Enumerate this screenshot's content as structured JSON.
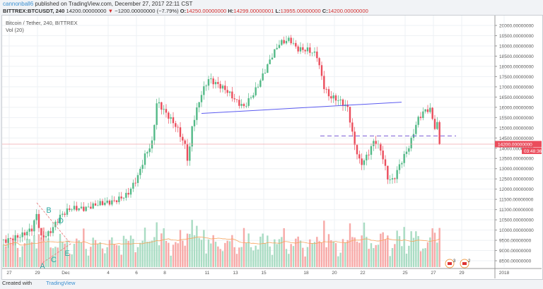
{
  "header": {
    "author": "cannonball6",
    "published": "published on TradingView.com, December 27, 2017 22:11 CST",
    "symbol": "BITTREX:BTCUSDT, 240",
    "last": "14200.00000000",
    "change": "−1200.00000000 (−7.79%)",
    "o_label": "O:",
    "o": "14250.00000000",
    "h_label": "H:",
    "h": "14299.00000001",
    "l_label": "L:",
    "l": "13955.00000000",
    "c_label": "C:",
    "c": "14200.00000000"
  },
  "legend": {
    "title": "Bitcoin / Tether, 240, BITTREX",
    "vol": "Vol (20)"
  },
  "footer": {
    "created": "Created with",
    "brand": "TradingView"
  },
  "colors": {
    "up": "#53b987",
    "down": "#eb4d5c",
    "up_vol": "#a9dcc3",
    "down_vol": "#f7a9a7",
    "trend": "#5b5bf0",
    "dashed": "#7a5cd6",
    "ma": "#f7a35c",
    "annot": "#2aa7a0"
  },
  "chart_data": {
    "type": "candlestick",
    "title": "Bitcoin / Tether, 240, BITTREX",
    "ylim": [
      8250,
      20250
    ],
    "y_ticks": [
      "20000.00000000",
      "19500.00000000",
      "19000.00000000",
      "18500.00000000",
      "18000.00000000",
      "17500.00000000",
      "17000.00000000",
      "16500.00000000",
      "16000.00000000",
      "15500.00000000",
      "15000.00000000",
      "14500.00000000",
      "14000.00000000",
      "13500.00000000",
      "13000.00000000",
      "12500.00000000",
      "12000.00000000",
      "11500.00000000",
      "11000.00000000",
      "10500.00000000",
      "10000.00000000",
      "9500.00000000",
      "9000.00000000",
      "8500.00000000"
    ],
    "x_ticks": [
      {
        "label": "27",
        "day": 0
      },
      {
        "label": "29",
        "day": 2
      },
      {
        "label": "Dec",
        "day": 4
      },
      {
        "label": "4",
        "day": 7
      },
      {
        "label": "6",
        "day": 9
      },
      {
        "label": "8",
        "day": 11
      },
      {
        "label": "11",
        "day": 14
      },
      {
        "label": "13",
        "day": 16
      },
      {
        "label": "15",
        "day": 18
      },
      {
        "label": "18",
        "day": 21
      },
      {
        "label": "20",
        "day": 23
      },
      {
        "label": "22",
        "day": 25
      },
      {
        "label": "25",
        "day": 28
      },
      {
        "label": "27",
        "day": 30
      },
      {
        "label": "29",
        "day": 32
      },
      {
        "label": "2018",
        "day": 35
      }
    ],
    "close_waypoints_day_price": [
      [
        -0.4,
        9600
      ],
      [
        0.85,
        9750
      ],
      [
        1.6,
        10000
      ],
      [
        1.95,
        10700
      ],
      [
        2.25,
        9500
      ],
      [
        2.85,
        9700
      ],
      [
        3.6,
        10500
      ],
      [
        4.35,
        10900
      ],
      [
        5.35,
        10950
      ],
      [
        6.35,
        11300
      ],
      [
        7.35,
        11500
      ],
      [
        8.35,
        11900
      ],
      [
        9.1,
        12800
      ],
      [
        9.6,
        13800
      ],
      [
        10.1,
        14400
      ],
      [
        10.45,
        16400
      ],
      [
        10.85,
        16000
      ],
      [
        11.35,
        15500
      ],
      [
        11.85,
        15000
      ],
      [
        12.45,
        14000
      ],
      [
        12.65,
        13200
      ],
      [
        12.95,
        15000
      ],
      [
        13.6,
        16500
      ],
      [
        14.1,
        17200
      ],
      [
        14.6,
        17000
      ],
      [
        15.35,
        16700
      ],
      [
        16.1,
        16200
      ],
      [
        16.6,
        16000
      ],
      [
        17.35,
        16800
      ],
      [
        17.95,
        17700
      ],
      [
        18.6,
        18700
      ],
      [
        19.1,
        19300
      ],
      [
        19.85,
        19500
      ],
      [
        20.35,
        19000
      ],
      [
        21.1,
        18900
      ],
      [
        21.75,
        18600
      ],
      [
        22.25,
        17000
      ],
      [
        22.6,
        16500
      ],
      [
        23.35,
        16200
      ],
      [
        23.95,
        15800
      ],
      [
        24.35,
        14200
      ],
      [
        24.85,
        13000
      ],
      [
        25.35,
        13500
      ],
      [
        25.85,
        14300
      ],
      [
        26.35,
        13700
      ],
      [
        26.75,
        12500
      ],
      [
        27.15,
        12400
      ],
      [
        27.6,
        13200
      ],
      [
        28.35,
        14300
      ],
      [
        28.85,
        15500
      ],
      [
        29.35,
        16000
      ],
      [
        29.75,
        16100
      ],
      [
        30.1,
        15200
      ],
      [
        30.35,
        15400
      ],
      [
        30.6,
        14200
      ]
    ],
    "last_price": "14200.00000000",
    "countdown": "03:48:36",
    "trendline": {
      "from": [
        13.6,
        15700
      ],
      "to": [
        27.75,
        16250
      ]
    },
    "horizontal_dashed": {
      "price": 14600,
      "from_day": 22,
      "to_day": 31.6
    },
    "annotations": [
      "A",
      "B",
      "C",
      "D",
      "E"
    ],
    "volume_ma_period": 20,
    "event_badges": [
      "3",
      "2"
    ]
  }
}
